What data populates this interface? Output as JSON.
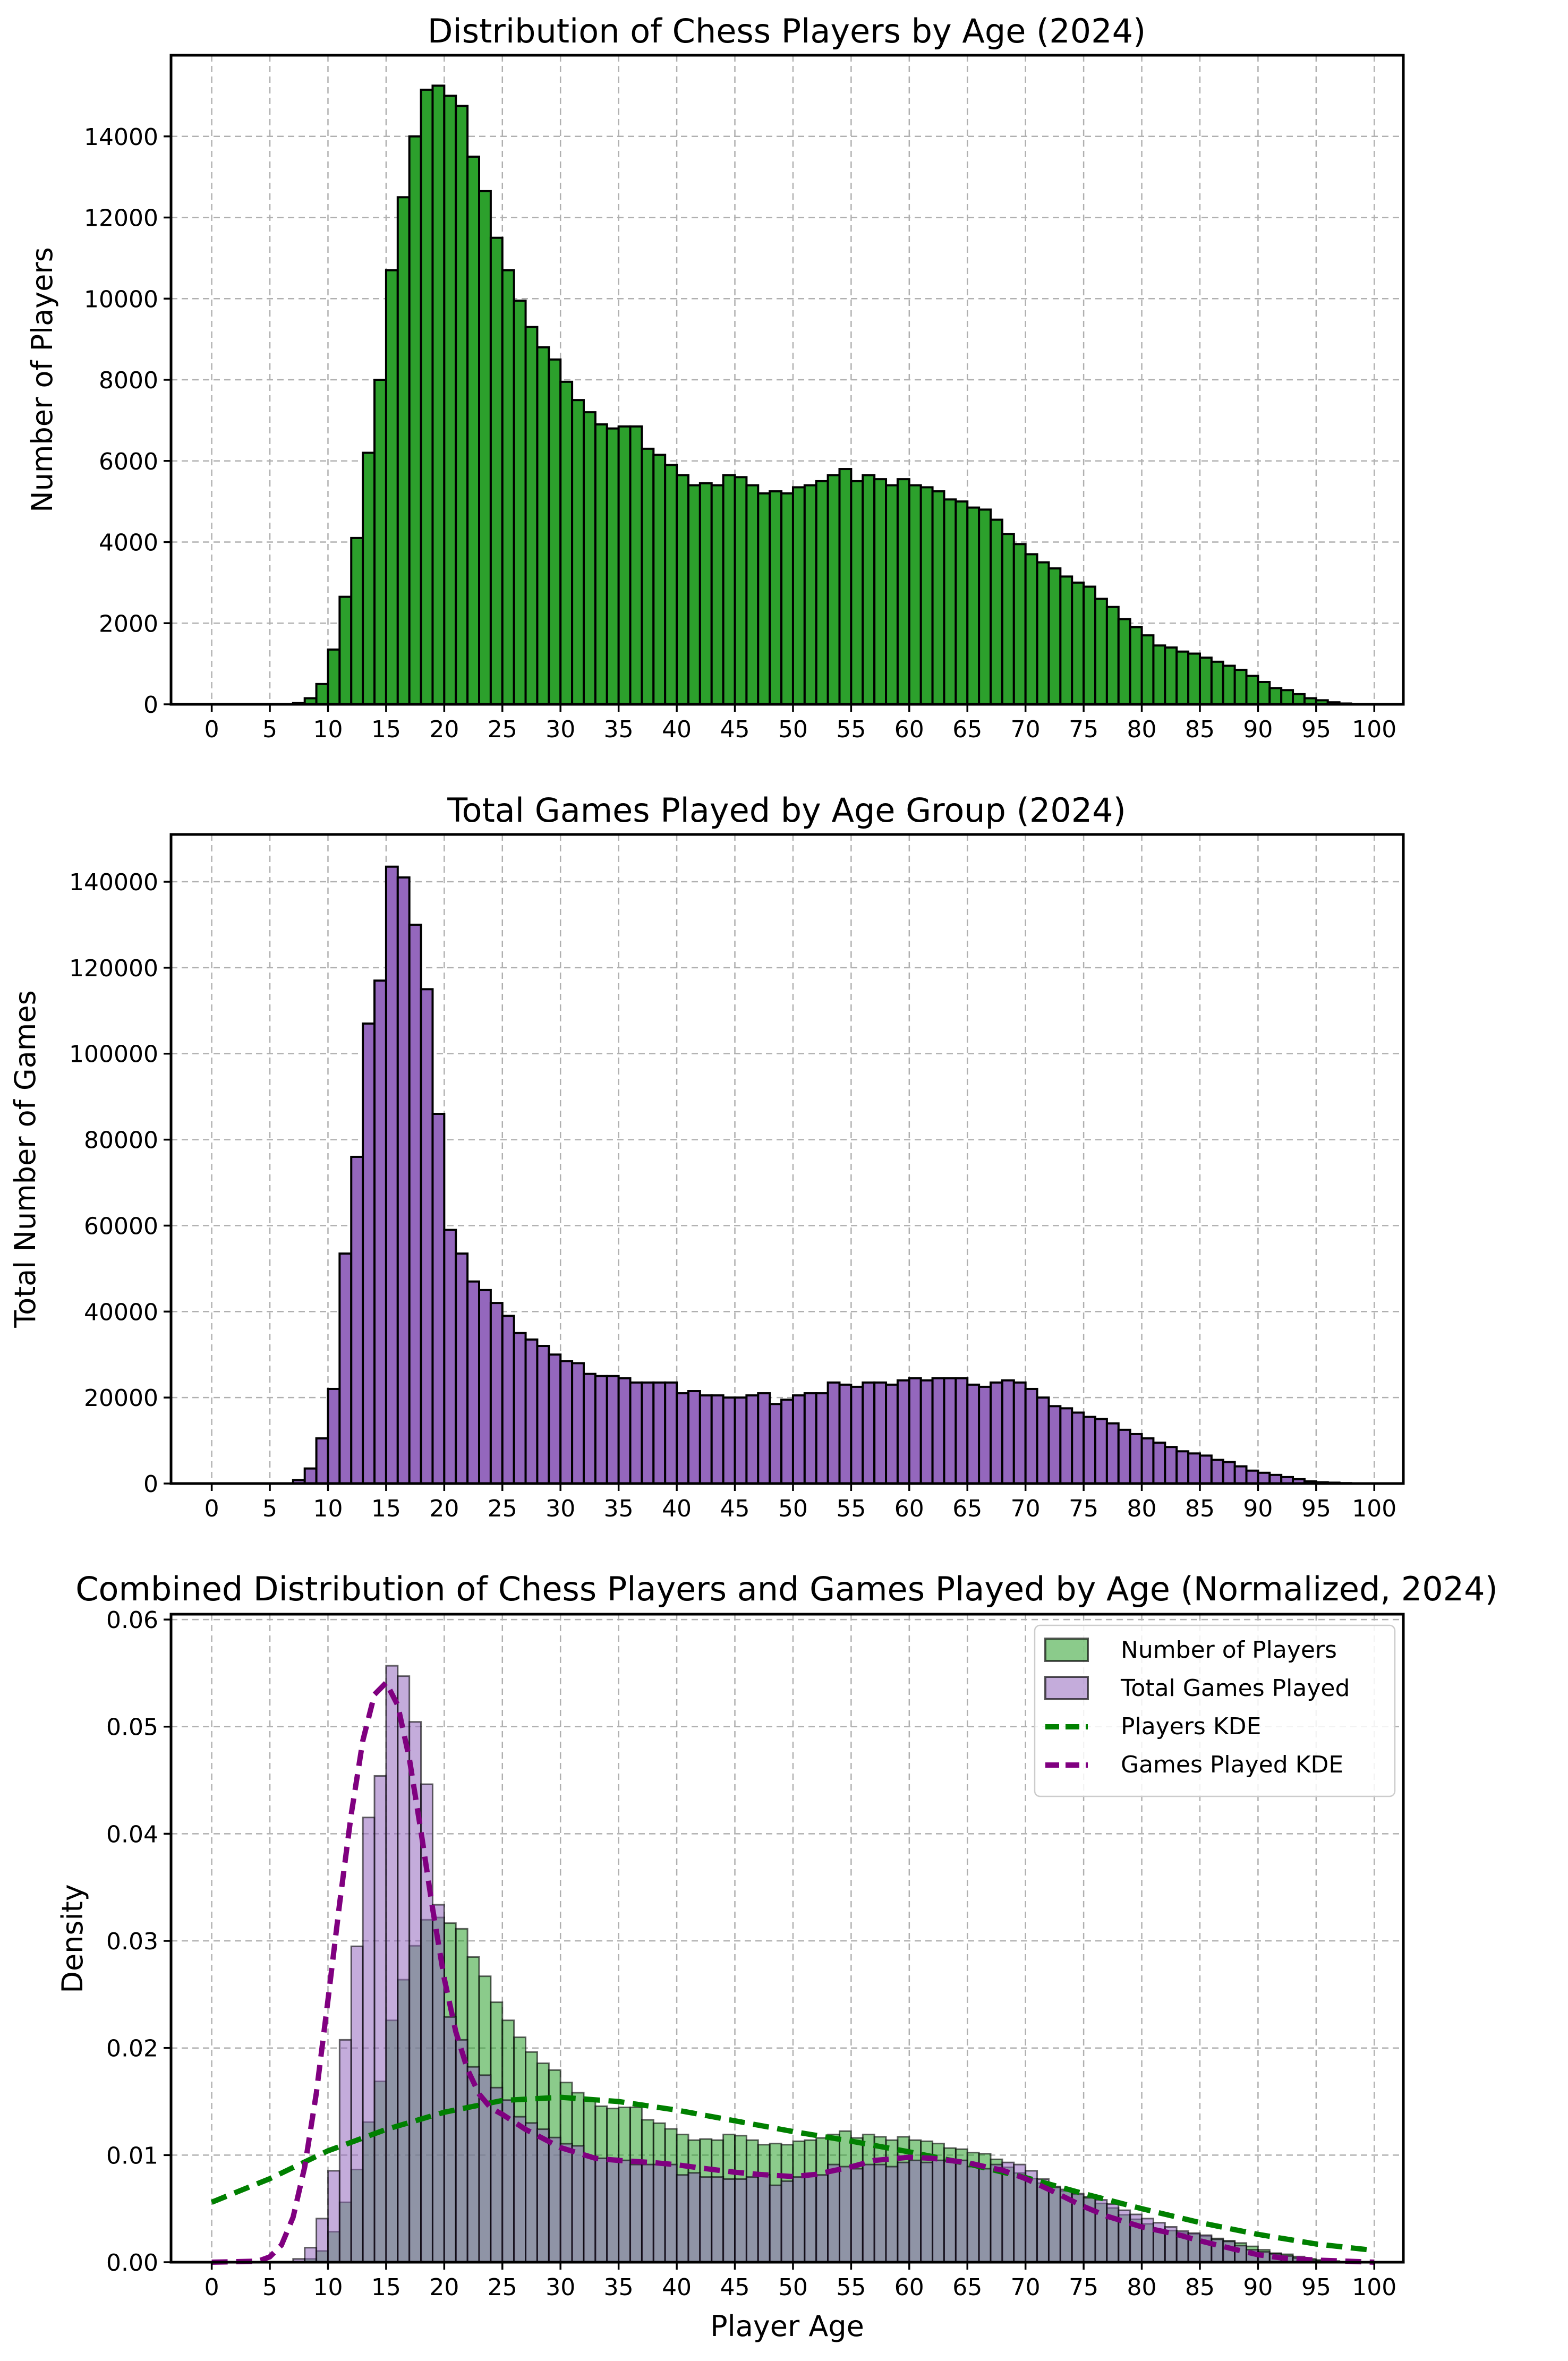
{
  "charts": [
    {
      "type": "bar",
      "title": "Distribution of Chess Players by Age (2024)",
      "xlabel": "",
      "ylabel": "Number of Players",
      "xlim": [
        -3.5,
        102.5
      ],
      "ylim": [
        0,
        16000
      ],
      "xticks": [
        0,
        5,
        10,
        15,
        20,
        25,
        30,
        35,
        40,
        45,
        50,
        55,
        60,
        65,
        70,
        75,
        80,
        85,
        90,
        95,
        100
      ],
      "yticks": [
        0,
        2000,
        4000,
        6000,
        8000,
        10000,
        12000,
        14000
      ],
      "bin_start": 0,
      "bin_width": 1,
      "values": [
        0,
        0,
        0,
        0,
        0,
        0,
        0,
        30,
        150,
        500,
        1350,
        2650,
        4100,
        6200,
        8000,
        10700,
        12500,
        14000,
        15150,
        15250,
        15000,
        14750,
        13500,
        12650,
        11500,
        10700,
        9950,
        9300,
        8800,
        8500,
        7950,
        7500,
        7200,
        6900,
        6800,
        6850,
        6850,
        6300,
        6150,
        5900,
        5650,
        5400,
        5450,
        5400,
        5650,
        5600,
        5400,
        5200,
        5250,
        5200,
        5350,
        5400,
        5500,
        5650,
        5800,
        5500,
        5650,
        5550,
        5400,
        5550,
        5400,
        5350,
        5250,
        5050,
        5000,
        4850,
        4800,
        4550,
        4200,
        3950,
        3700,
        3500,
        3350,
        3150,
        3000,
        2900,
        2600,
        2400,
        2100,
        1900,
        1700,
        1450,
        1400,
        1300,
        1250,
        1150,
        1050,
        950,
        850,
        700,
        550,
        400,
        350,
        250,
        150,
        100,
        50,
        20,
        0,
        0,
        0
      ]
    },
    {
      "type": "bar",
      "title": "Total Games Played by Age Group (2024)",
      "xlabel": "",
      "ylabel": "Total Number of Games",
      "xlim": [
        -3.5,
        102.5
      ],
      "ylim": [
        0,
        151000
      ],
      "xticks": [
        0,
        5,
        10,
        15,
        20,
        25,
        30,
        35,
        40,
        45,
        50,
        55,
        60,
        65,
        70,
        75,
        80,
        85,
        90,
        95,
        100
      ],
      "yticks": [
        0,
        20000,
        40000,
        60000,
        80000,
        100000,
        120000,
        140000
      ],
      "bin_start": 0,
      "bin_width": 1,
      "values": [
        0,
        0,
        0,
        0,
        0,
        0,
        0,
        800,
        3500,
        10500,
        22000,
        53500,
        76000,
        107000,
        117000,
        143500,
        141000,
        130000,
        115000,
        86000,
        59000,
        53500,
        47000,
        45000,
        42000,
        39000,
        35000,
        33500,
        32000,
        30000,
        28500,
        28000,
        25500,
        25000,
        25000,
        24500,
        23500,
        23500,
        23500,
        23500,
        21000,
        21500,
        20500,
        20500,
        20000,
        20000,
        20500,
        21000,
        18500,
        19500,
        20500,
        21000,
        21000,
        23500,
        23000,
        22500,
        23500,
        23500,
        23000,
        24000,
        24500,
        24000,
        24500,
        24500,
        24500,
        23000,
        22500,
        23500,
        24000,
        23500,
        22000,
        20000,
        18000,
        17500,
        16500,
        15500,
        15000,
        14000,
        12500,
        11500,
        10500,
        9500,
        8500,
        7500,
        7000,
        6500,
        5500,
        5000,
        4000,
        3000,
        2500,
        2000,
        1500,
        1000,
        500,
        300,
        200,
        100,
        50,
        0,
        0
      ]
    },
    {
      "type": "bar+line",
      "title": "Combined Distribution of Chess Players and Games Played by Age (Normalized, 2024)",
      "xlabel": "Player Age",
      "ylabel": "Density",
      "xlim": [
        -3.5,
        102.5
      ],
      "ylim": [
        0,
        0.0605
      ],
      "xticks": [
        0,
        5,
        10,
        15,
        20,
        25,
        30,
        35,
        40,
        45,
        50,
        55,
        60,
        65,
        70,
        75,
        80,
        85,
        90,
        95,
        100
      ],
      "yticks": [
        0.0,
        0.01,
        0.02,
        0.03,
        0.04,
        0.05,
        0.06
      ],
      "ytick_labels": [
        "0.00",
        "0.01",
        "0.02",
        "0.03",
        "0.04",
        "0.05",
        "0.06"
      ],
      "legend": {
        "position": "top-right",
        "entries": [
          "Number of Players",
          "Total Games Played",
          "Players KDE",
          "Games Played KDE"
        ]
      },
      "series": [
        {
          "name": "Number of Players",
          "kind": "bar",
          "color": "#2ca02c",
          "alpha": 0.55,
          "normalize_from": 0
        },
        {
          "name": "Total Games Played",
          "kind": "bar",
          "color": "#9467bd",
          "alpha": 0.55,
          "normalize_from": 1
        },
        {
          "name": "Players KDE",
          "kind": "line",
          "color": "#008000",
          "x": [
            0,
            5,
            10,
            15,
            20,
            25,
            30,
            35,
            40,
            45,
            50,
            55,
            60,
            65,
            70,
            75,
            80,
            85,
            90,
            95,
            100
          ],
          "values": [
            0.0056,
            0.0078,
            0.0104,
            0.0124,
            0.014,
            0.0151,
            0.0154,
            0.015,
            0.0142,
            0.0132,
            0.0122,
            0.0113,
            0.0103,
            0.0092,
            0.0079,
            0.0064,
            0.005,
            0.0037,
            0.0026,
            0.0017,
            0.0011
          ]
        },
        {
          "name": "Games Played KDE",
          "kind": "line",
          "color": "#800080",
          "x": [
            0,
            4,
            5,
            6,
            7,
            8,
            9,
            10,
            11,
            12,
            13,
            14,
            15,
            16,
            17,
            18,
            19,
            20,
            21,
            22,
            23,
            24,
            25,
            27,
            30,
            33,
            35,
            38,
            40,
            42,
            45,
            47,
            50,
            52,
            55,
            57,
            60,
            62,
            65,
            67,
            68,
            70,
            72,
            75,
            77,
            80,
            83,
            85,
            88,
            90,
            92,
            95,
            100
          ],
          "values": [
            0,
            0.0001,
            0.0005,
            0.0016,
            0.0042,
            0.0089,
            0.0158,
            0.0245,
            0.0335,
            0.0418,
            0.0487,
            0.053,
            0.0541,
            0.052,
            0.047,
            0.0402,
            0.033,
            0.0265,
            0.0215,
            0.018,
            0.0157,
            0.0144,
            0.0138,
            0.0124,
            0.0107,
            0.0097,
            0.0095,
            0.0093,
            0.0091,
            0.0088,
            0.0084,
            0.0082,
            0.008,
            0.0082,
            0.0089,
            0.0095,
            0.0098,
            0.0097,
            0.0093,
            0.0088,
            0.0086,
            0.0078,
            0.0068,
            0.0052,
            0.0043,
            0.0033,
            0.0026,
            0.002,
            0.0012,
            0.0007,
            0.0004,
            0.0002,
            0
          ]
        }
      ]
    }
  ]
}
